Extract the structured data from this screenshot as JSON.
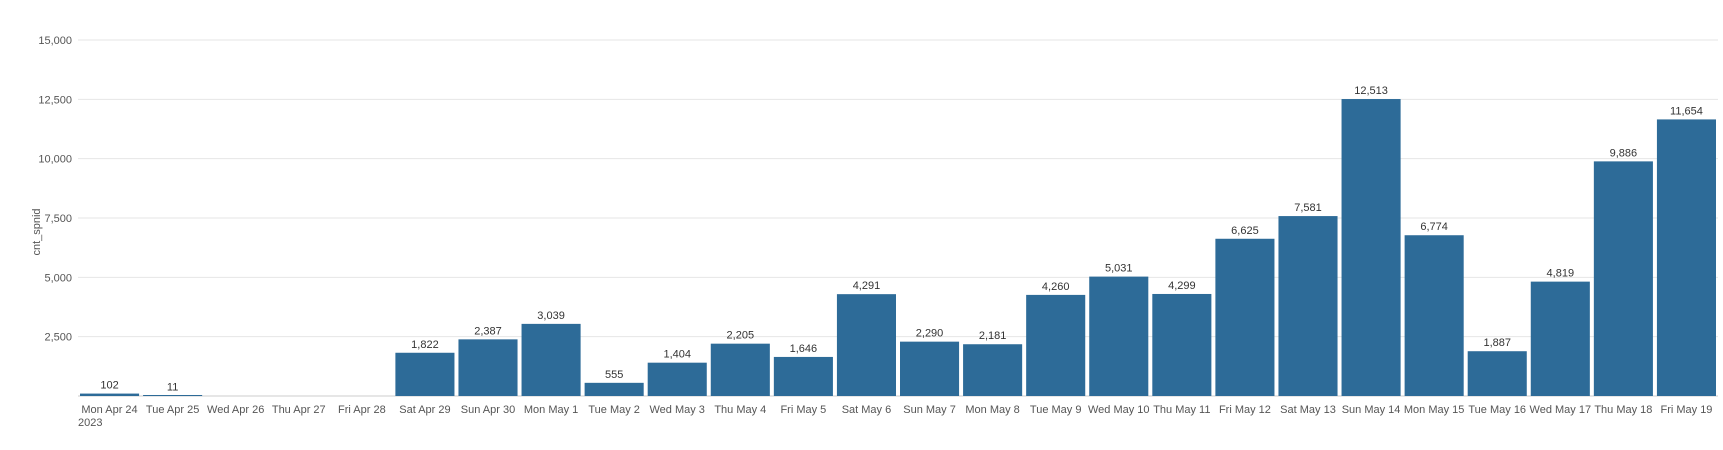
{
  "chart_data": {
    "type": "bar",
    "ylabel": "cnt_spnid",
    "xlabel": "",
    "ylim": [
      0,
      15000
    ],
    "yticks": [
      {
        "value": 2500,
        "label": "2,500"
      },
      {
        "value": 5000,
        "label": "5,000"
      },
      {
        "value": 7500,
        "label": "7,500"
      },
      {
        "value": 10000,
        "label": "10,000"
      },
      {
        "value": 12500,
        "label": "12,500"
      },
      {
        "value": 15000,
        "label": "15,000"
      }
    ],
    "year_label": "2023",
    "grid": true,
    "legend": "none",
    "bar_color": "#2d6b98",
    "categories": [
      "Mon Apr 24",
      "Tue Apr 25",
      "Wed Apr 26",
      "Thu Apr 27",
      "Fri Apr 28",
      "Sat Apr 29",
      "Sun Apr 30",
      "Mon May 1",
      "Tue May 2",
      "Wed May 3",
      "Thu May 4",
      "Fri May 5",
      "Sat May 6",
      "Sun May 7",
      "Mon May 8",
      "Tue May 9",
      "Wed May 10",
      "Thu May 11",
      "Fri May 12",
      "Sat May 13",
      "Sun May 14",
      "Mon May 15",
      "Tue May 16",
      "Wed May 17",
      "Thu May 18",
      "Fri May 19"
    ],
    "values": [
      102,
      11,
      null,
      null,
      null,
      1822,
      2387,
      3039,
      555,
      1404,
      2205,
      1646,
      4291,
      2290,
      2181,
      4260,
      5031,
      4299,
      6625,
      7581,
      12513,
      6774,
      1887,
      4819,
      9886,
      11654
    ],
    "value_labels": [
      "102",
      "11",
      "",
      "",
      "",
      "1,822",
      "2,387",
      "3,039",
      "555",
      "1,404",
      "2,205",
      "1,646",
      "4,291",
      "2,290",
      "2,181",
      "4,260",
      "5,031",
      "4,299",
      "6,625",
      "7,581",
      "12,513",
      "6,774",
      "1,887",
      "4,819",
      "9,886",
      "11,654"
    ]
  }
}
